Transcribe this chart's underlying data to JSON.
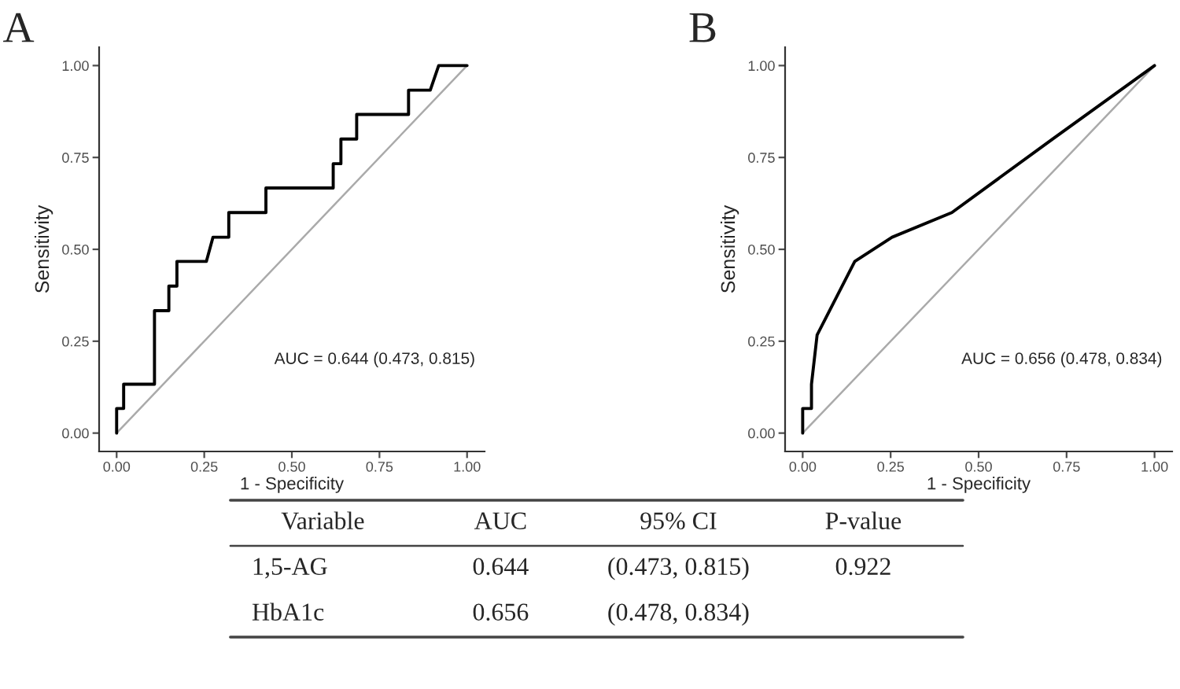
{
  "chart_data": [
    {
      "type": "line",
      "title": "A",
      "xlabel": "1 - Specificity",
      "ylabel": "Sensitivity",
      "series": [
        {
          "color": "#aaaaaa",
          "x": [
            0,
            1
          ],
          "values": [
            0,
            1
          ]
        },
        {
          "color": "#000000",
          "x": [
            0,
            0,
            0.02,
            0.02,
            0.108,
            0.108,
            0.149,
            0.149,
            0.172,
            0.172,
            0.256,
            0.275,
            0.32,
            0.32,
            0.426,
            0.426,
            0.618,
            0.618,
            0.64,
            0.64,
            0.685,
            0.685,
            0.833,
            0.833,
            0.895,
            0.919,
            1.0
          ],
          "values": [
            0,
            0.067,
            0.067,
            0.133,
            0.133,
            0.333,
            0.333,
            0.4,
            0.4,
            0.467,
            0.467,
            0.533,
            0.533,
            0.6,
            0.6,
            0.667,
            0.667,
            0.733,
            0.733,
            0.8,
            0.8,
            0.867,
            0.867,
            0.933,
            0.933,
            1.0,
            1.0
          ]
        }
      ],
      "xlim": [
        -0.05,
        1.05
      ],
      "ylim": [
        -0.05,
        1.05
      ],
      "xticks": [
        {
          "value": 0,
          "label": "0.00"
        },
        {
          "value": 0.25,
          "label": "0.25"
        },
        {
          "value": 0.5,
          "label": "0.50"
        },
        {
          "value": 0.75,
          "label": "0.75"
        },
        {
          "value": 1,
          "label": "1.00"
        }
      ],
      "yticks": [
        {
          "value": 0,
          "label": "0.00"
        },
        {
          "value": 0.25,
          "label": "0.25"
        },
        {
          "value": 0.5,
          "label": "0.50"
        },
        {
          "value": 0.75,
          "label": "0.75"
        },
        {
          "value": 1,
          "label": "1.00"
        }
      ],
      "annotations": [
        "AUC = 0.644 (0.473, 0.815)"
      ],
      "grid": false,
      "marker": "none",
      "line_style": "solid"
    },
    {
      "type": "line",
      "title": "B",
      "xlabel": "1 - Specificity",
      "ylabel": "Sensitivity",
      "series": [
        {
          "color": "#aaaaaa",
          "x": [
            0,
            1
          ],
          "values": [
            0,
            1
          ]
        },
        {
          "color": "#000000",
          "x": [
            0,
            0,
            0.025,
            0.025,
            0.041,
            0.148,
            0.254,
            0.424,
            0.71,
            1.0
          ],
          "values": [
            0,
            0.067,
            0.067,
            0.133,
            0.267,
            0.467,
            0.533,
            0.6,
            0.8,
            1.0
          ]
        }
      ],
      "xlim": [
        -0.05,
        1.05
      ],
      "ylim": [
        -0.05,
        1.05
      ],
      "xticks": [
        {
          "value": 0,
          "label": "0.00"
        },
        {
          "value": 0.25,
          "label": "0.25"
        },
        {
          "value": 0.5,
          "label": "0.50"
        },
        {
          "value": 0.75,
          "label": "0.75"
        },
        {
          "value": 1,
          "label": "1.00"
        }
      ],
      "yticks": [
        {
          "value": 0,
          "label": "0.00"
        },
        {
          "value": 0.25,
          "label": "0.25"
        },
        {
          "value": 0.5,
          "label": "0.50"
        },
        {
          "value": 0.75,
          "label": "0.75"
        },
        {
          "value": 1,
          "label": "1.00"
        }
      ],
      "annotations": [
        "AUC = 0.656 (0.478, 0.834)"
      ],
      "grid": false,
      "marker": "none",
      "line_style": "solid"
    },
    {
      "type": "other",
      "categories": [
        "Variable",
        "AUC",
        "95% CI",
        "P-value"
      ],
      "y_categories": [
        "1,5-AG",
        "HbA1c"
      ],
      "cell_labels": [
        [
          "0.644",
          "(0.473, 0.815)",
          "0.922"
        ],
        [
          "0.656",
          "(0.478, 0.834)",
          null
        ]
      ]
    }
  ]
}
